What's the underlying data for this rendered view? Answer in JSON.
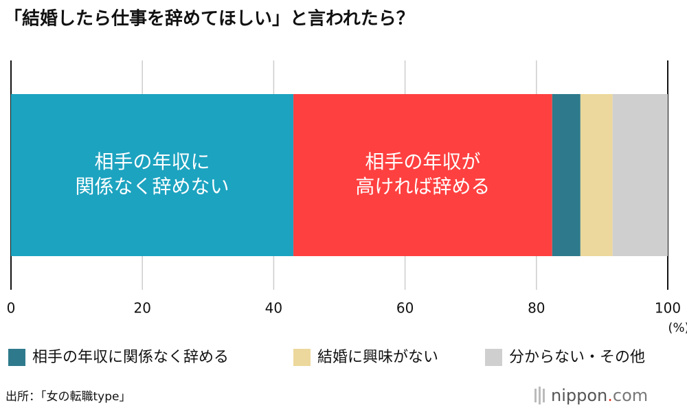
{
  "chart_data": {
    "type": "stacked_barh",
    "title": "「結婚したら仕事を辞めてほしい」と言われたら？",
    "series": [
      {
        "name": [
          "相手の年収に",
          "関係なく辞めない"
        ],
        "color": "#1ca3c0",
        "values": [
          43.0
        ]
      },
      {
        "name": [
          "相手の年収が",
          "高ければ辞める"
        ],
        "color": "#ff4040",
        "values": [
          39.4
        ]
      },
      {
        "name": "相手の年収に関係なく辞める",
        "color": "#2e7a8c",
        "values": [
          4.3
        ]
      },
      {
        "name": "結婚に興味がない",
        "color": "#ecd89c",
        "values": [
          4.9
        ]
      },
      {
        "name": "分からない・その他",
        "color": "#cfcfcf",
        "values": [
          8.4
        ]
      }
    ],
    "xlim": [
      0,
      100
    ],
    "xticks": [
      0,
      20,
      40,
      60,
      80,
      100
    ],
    "x_unit": "(%)",
    "grid": true,
    "source": "出所：「女の転職type」",
    "brand": [
      "nippon",
      ".",
      "com"
    ]
  }
}
